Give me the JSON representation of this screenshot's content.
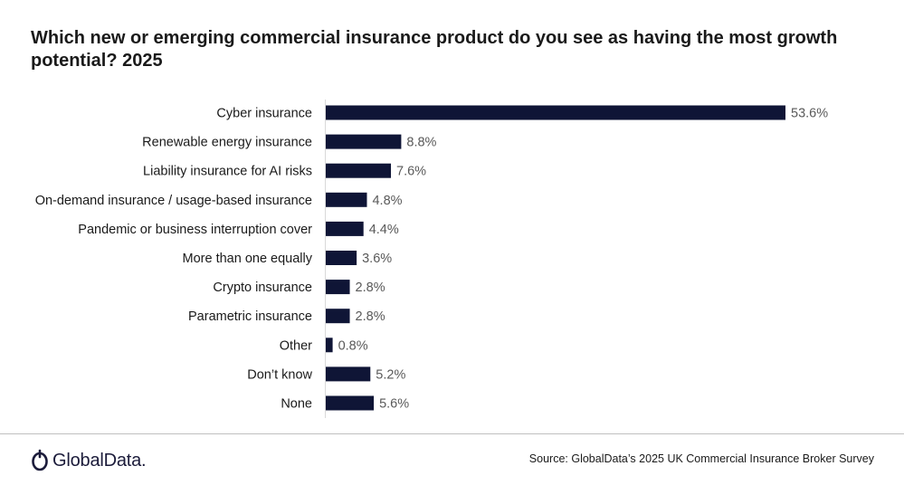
{
  "chart_data": {
    "type": "bar",
    "orientation": "horizontal",
    "title": "Which new or emerging commercial insurance product do you see as having the most growth potential? 2025",
    "categories": [
      "Cyber insurance",
      "Renewable energy insurance",
      "Liability insurance for AI risks",
      "On-demand insurance / usage-based insurance",
      "Pandemic or business interruption cover",
      "More than one equally",
      "Crypto insurance",
      "Parametric insurance",
      "Other",
      "Don’t know",
      "None"
    ],
    "values": [
      53.6,
      8.8,
      7.6,
      4.8,
      4.4,
      3.6,
      2.8,
      2.8,
      0.8,
      5.2,
      5.6
    ],
    "value_labels": [
      "53.6%",
      "8.8%",
      "7.6%",
      "4.8%",
      "4.4%",
      "3.6%",
      "2.8%",
      "2.8%",
      "0.8%",
      "5.2%",
      "5.6%"
    ],
    "unit": "%",
    "bar_color": "#0f1536",
    "grid": false,
    "legend": "none"
  },
  "footer": {
    "brand": "GlobalData.",
    "source": "Source: GlobalData’s 2025 UK Commercial Insurance Broker Survey"
  }
}
